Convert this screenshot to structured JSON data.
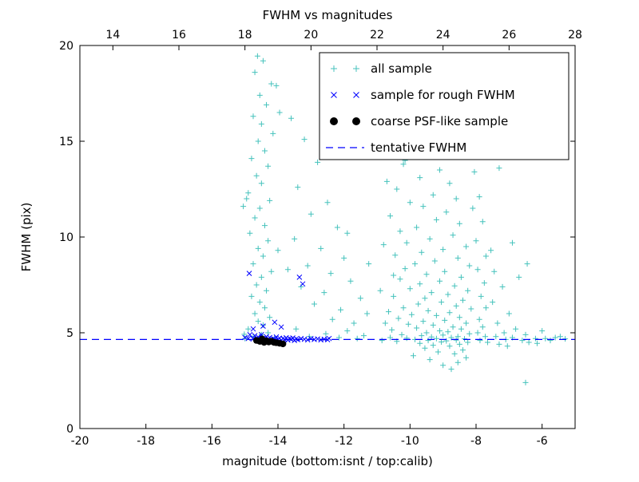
{
  "chart_data": {
    "type": "scatter",
    "title": "FWHM vs magnitudes",
    "xlabel": "magnitude (bottom:isnt / top:calib)",
    "ylabel": "FWHM (pix)",
    "xlim": [
      -20,
      -5
    ],
    "ylim": [
      0,
      20
    ],
    "x_ticks_bottom": [
      -20,
      -18,
      -16,
      -14,
      -12,
      -10,
      -8,
      -6
    ],
    "x_ticks_top": [
      14,
      16,
      18,
      20,
      22,
      24,
      26,
      28
    ],
    "top_axis_offset": 33,
    "y_ticks": [
      0,
      5,
      10,
      15,
      20
    ],
    "tentative_fwhm": 4.65,
    "grid": false,
    "legend_position": "upper right",
    "colors": {
      "all_sample": "#45c2bc",
      "rough_fwhm": "#0000ff",
      "psf_like": "#000000",
      "tentative_line": "#0000ff",
      "frame": "#000000"
    },
    "legend": [
      {
        "label": "all sample",
        "marker": "plus"
      },
      {
        "label": "sample for rough FWHM",
        "marker": "x"
      },
      {
        "label": "coarse PSF-like sample",
        "marker": "dot"
      },
      {
        "label": "tentative FWHM",
        "marker": "dashed"
      }
    ],
    "series": {
      "all_sample": [
        [
          -14.62,
          19.45
        ],
        [
          -14.45,
          19.2
        ],
        [
          -14.7,
          18.6
        ],
        [
          -14.2,
          18.0
        ],
        [
          -14.55,
          17.4
        ],
        [
          -14.35,
          16.9
        ],
        [
          -14.75,
          16.3
        ],
        [
          -14.5,
          15.9
        ],
        [
          -14.15,
          15.4
        ],
        [
          -14.6,
          15.0
        ],
        [
          -14.4,
          14.5
        ],
        [
          -14.8,
          14.1
        ],
        [
          -14.3,
          13.7
        ],
        [
          -14.65,
          13.2
        ],
        [
          -14.5,
          12.8
        ],
        [
          -14.9,
          12.3
        ],
        [
          -14.25,
          11.9
        ],
        [
          -14.55,
          11.5
        ],
        [
          -14.7,
          11.0
        ],
        [
          -14.4,
          10.6
        ],
        [
          -14.85,
          10.2
        ],
        [
          -14.3,
          9.8
        ],
        [
          -14.6,
          9.4
        ],
        [
          -14.45,
          9.0
        ],
        [
          -14.75,
          8.6
        ],
        [
          -14.2,
          8.2
        ],
        [
          -14.5,
          7.9
        ],
        [
          -14.65,
          7.5
        ],
        [
          -14.35,
          7.2
        ],
        [
          -14.8,
          6.9
        ],
        [
          -14.55,
          6.6
        ],
        [
          -14.4,
          6.3
        ],
        [
          -14.7,
          6.0
        ],
        [
          -14.25,
          5.8
        ],
        [
          -14.6,
          5.6
        ],
        [
          -14.45,
          5.4
        ],
        [
          -14.9,
          5.2
        ],
        [
          -14.3,
          5.0
        ],
        [
          -14.5,
          4.9
        ],
        [
          -14.75,
          4.8
        ],
        [
          -15.0,
          4.7
        ],
        [
          -14.1,
          4.75
        ],
        [
          -14.95,
          12.0
        ],
        [
          -15.05,
          11.6
        ],
        [
          -14.05,
          17.9
        ],
        [
          -13.95,
          16.5
        ],
        [
          -14.0,
          9.3
        ],
        [
          -15.02,
          4.92
        ],
        [
          -13.6,
          16.2
        ],
        [
          -13.2,
          15.1
        ],
        [
          -12.8,
          13.9
        ],
        [
          -13.4,
          12.6
        ],
        [
          -12.5,
          11.8
        ],
        [
          -13.0,
          11.2
        ],
        [
          -12.2,
          10.5
        ],
        [
          -13.5,
          9.9
        ],
        [
          -12.7,
          9.4
        ],
        [
          -12.0,
          8.9
        ],
        [
          -13.1,
          8.5
        ],
        [
          -12.4,
          8.1
        ],
        [
          -11.8,
          7.7
        ],
        [
          -13.3,
          7.4
        ],
        [
          -12.6,
          7.1
        ],
        [
          -11.5,
          6.8
        ],
        [
          -12.9,
          6.5
        ],
        [
          -12.1,
          6.2
        ],
        [
          -11.3,
          6.0
        ],
        [
          -12.35,
          5.7
        ],
        [
          -11.7,
          5.5
        ],
        [
          -13.45,
          5.2
        ],
        [
          -11.9,
          5.1
        ],
        [
          -12.55,
          4.95
        ],
        [
          -11.4,
          4.85
        ],
        [
          -13.05,
          4.8
        ],
        [
          -12.15,
          4.75
        ],
        [
          -11.6,
          4.7
        ],
        [
          -11.25,
          8.6
        ],
        [
          -11.9,
          10.2
        ],
        [
          -13.7,
          8.3
        ],
        [
          -12.3,
          14.2
        ],
        [
          -9.9,
          14.6
        ],
        [
          -9.5,
          14.2
        ],
        [
          -10.2,
          13.8
        ],
        [
          -9.1,
          13.5
        ],
        [
          -9.7,
          13.1
        ],
        [
          -8.8,
          12.8
        ],
        [
          -10.4,
          12.5
        ],
        [
          -9.3,
          12.2
        ],
        [
          -8.6,
          12.0
        ],
        [
          -10.0,
          11.8
        ],
        [
          -9.6,
          11.6
        ],
        [
          -8.9,
          11.3
        ],
        [
          -10.6,
          11.1
        ],
        [
          -9.2,
          10.9
        ],
        [
          -8.5,
          10.7
        ],
        [
          -9.8,
          10.5
        ],
        [
          -10.3,
          10.3
        ],
        [
          -8.7,
          10.1
        ],
        [
          -9.4,
          9.9
        ],
        [
          -10.1,
          9.7
        ],
        [
          -8.3,
          9.5
        ],
        [
          -9.0,
          9.35
        ],
        [
          -9.65,
          9.2
        ],
        [
          -10.45,
          9.05
        ],
        [
          -8.55,
          8.9
        ],
        [
          -9.25,
          8.75
        ],
        [
          -9.85,
          8.6
        ],
        [
          -8.2,
          8.5
        ],
        [
          -10.15,
          8.35
        ],
        [
          -8.95,
          8.2
        ],
        [
          -9.5,
          8.05
        ],
        [
          -8.45,
          7.9
        ],
        [
          -10.3,
          7.8
        ],
        [
          -9.1,
          7.7
        ],
        [
          -9.7,
          7.55
        ],
        [
          -8.65,
          7.45
        ],
        [
          -10.0,
          7.3
        ],
        [
          -8.25,
          7.2
        ],
        [
          -9.35,
          7.1
        ],
        [
          -8.85,
          7.0
        ],
        [
          -10.5,
          6.9
        ],
        [
          -9.55,
          6.8
        ],
        [
          -8.4,
          6.7
        ],
        [
          -9.05,
          6.6
        ],
        [
          -9.75,
          6.5
        ],
        [
          -8.6,
          6.4
        ],
        [
          -10.2,
          6.3
        ],
        [
          -8.15,
          6.25
        ],
        [
          -9.45,
          6.15
        ],
        [
          -8.8,
          6.05
        ],
        [
          -9.95,
          5.95
        ],
        [
          -9.2,
          5.9
        ],
        [
          -8.5,
          5.8
        ],
        [
          -10.35,
          5.75
        ],
        [
          -8.95,
          5.65
        ],
        [
          -9.6,
          5.6
        ],
        [
          -8.3,
          5.5
        ],
        [
          -10.05,
          5.45
        ],
        [
          -9.3,
          5.4
        ],
        [
          -8.7,
          5.3
        ],
        [
          -9.8,
          5.25
        ],
        [
          -8.45,
          5.2
        ],
        [
          -10.55,
          5.15
        ],
        [
          -9.1,
          5.1
        ],
        [
          -8.85,
          5.05
        ],
        [
          -9.5,
          5.0
        ],
        [
          -8.2,
          4.95
        ],
        [
          -10.25,
          4.9
        ],
        [
          -9.0,
          4.88
        ],
        [
          -9.65,
          4.85
        ],
        [
          -8.55,
          4.8
        ],
        [
          -9.35,
          4.78
        ],
        [
          -8.75,
          4.75
        ],
        [
          -10.1,
          4.72
        ],
        [
          -9.2,
          4.7
        ],
        [
          -8.35,
          4.68
        ],
        [
          -9.85,
          4.65
        ],
        [
          -8.6,
          4.62
        ],
        [
          -9.45,
          4.6
        ],
        [
          -8.9,
          4.58
        ],
        [
          -10.4,
          4.55
        ],
        [
          -9.05,
          4.52
        ],
        [
          -8.25,
          4.5
        ],
        [
          -9.7,
          4.45
        ],
        [
          -8.5,
          4.4
        ],
        [
          -9.3,
          4.35
        ],
        [
          -8.8,
          4.3
        ],
        [
          -9.55,
          4.2
        ],
        [
          -8.4,
          4.1
        ],
        [
          -9.15,
          4.0
        ],
        [
          -8.65,
          3.9
        ],
        [
          -9.9,
          3.8
        ],
        [
          -8.3,
          3.7
        ],
        [
          -9.4,
          3.6
        ],
        [
          -8.55,
          3.45
        ],
        [
          -9.0,
          3.3
        ],
        [
          -8.75,
          3.1
        ],
        [
          -10.7,
          12.9
        ],
        [
          -10.8,
          9.6
        ],
        [
          -10.9,
          7.2
        ],
        [
          -10.75,
          5.5
        ],
        [
          -10.6,
          4.75
        ],
        [
          -10.85,
          4.6
        ],
        [
          -7.9,
          12.1
        ],
        [
          -7.8,
          10.8
        ],
        [
          -8.0,
          9.8
        ],
        [
          -7.7,
          9.0
        ],
        [
          -7.95,
          8.3
        ],
        [
          -7.75,
          7.6
        ],
        [
          -7.85,
          6.9
        ],
        [
          -7.7,
          6.3
        ],
        [
          -7.9,
          5.7
        ],
        [
          -7.8,
          5.3
        ],
        [
          -7.95,
          5.0
        ],
        [
          -7.72,
          4.8
        ],
        [
          -7.88,
          4.6
        ],
        [
          -7.65,
          4.5
        ],
        [
          -8.05,
          13.4
        ],
        [
          -10.15,
          14.0
        ],
        [
          -9.75,
          15.3
        ],
        [
          -8.1,
          11.5
        ],
        [
          -10.5,
          8.0
        ],
        [
          -10.65,
          6.1
        ],
        [
          -7.3,
          13.6
        ],
        [
          -6.45,
          8.6
        ],
        [
          -6.9,
          9.7
        ],
        [
          -7.45,
          8.2
        ],
        [
          -7.2,
          7.4
        ],
        [
          -7.5,
          6.6
        ],
        [
          -7.0,
          6.0
        ],
        [
          -7.35,
          5.5
        ],
        [
          -6.8,
          5.2
        ],
        [
          -7.15,
          5.0
        ],
        [
          -6.5,
          4.9
        ],
        [
          -7.4,
          4.8
        ],
        [
          -6.9,
          4.75
        ],
        [
          -6.2,
          4.7
        ],
        [
          -7.1,
          4.65
        ],
        [
          -6.6,
          4.6
        ],
        [
          -5.9,
          4.7
        ],
        [
          -5.6,
          4.75
        ],
        [
          -5.3,
          4.68
        ],
        [
          -6.4,
          4.5
        ],
        [
          -7.3,
          4.4
        ],
        [
          -6.0,
          5.1
        ],
        [
          -5.75,
          4.6
        ],
        [
          -6.5,
          2.4
        ],
        [
          -7.55,
          9.3
        ],
        [
          -6.7,
          7.9
        ],
        [
          -5.45,
          4.8
        ],
        [
          -7.05,
          4.3
        ],
        [
          -6.15,
          4.45
        ]
      ],
      "rough_fwhm": [
        [
          -15.0,
          4.75
        ],
        [
          -14.9,
          4.7
        ],
        [
          -14.85,
          4.9
        ],
        [
          -14.75,
          4.68
        ],
        [
          -14.7,
          4.85
        ],
        [
          -14.65,
          4.62
        ],
        [
          -14.6,
          4.78
        ],
        [
          -14.55,
          4.66
        ],
        [
          -14.5,
          4.9
        ],
        [
          -14.45,
          4.72
        ],
        [
          -14.4,
          4.64
        ],
        [
          -14.35,
          4.8
        ],
        [
          -14.3,
          4.68
        ],
        [
          -14.25,
          4.75
        ],
        [
          -14.2,
          4.62
        ],
        [
          -14.15,
          4.7
        ],
        [
          -14.1,
          4.66
        ],
        [
          -14.05,
          4.78
        ],
        [
          -14.0,
          4.64
        ],
        [
          -13.95,
          4.72
        ],
        [
          -13.9,
          4.6
        ],
        [
          -13.85,
          4.7
        ],
        [
          -13.8,
          4.65
        ],
        [
          -13.75,
          4.74
        ],
        [
          -13.7,
          4.62
        ],
        [
          -13.65,
          4.7
        ],
        [
          -13.6,
          4.66
        ],
        [
          -13.55,
          4.73
        ],
        [
          -13.5,
          4.6
        ],
        [
          -13.45,
          4.68
        ],
        [
          -13.4,
          4.64
        ],
        [
          -13.3,
          4.7
        ],
        [
          -13.2,
          4.66
        ],
        [
          -13.1,
          4.63
        ],
        [
          -13.0,
          4.7
        ],
        [
          -12.9,
          4.65
        ],
        [
          -12.8,
          4.68
        ],
        [
          -12.7,
          4.63
        ],
        [
          -12.6,
          4.66
        ],
        [
          -12.5,
          4.64
        ],
        [
          -12.45,
          4.7
        ],
        [
          -14.87,
          8.1
        ],
        [
          -13.35,
          7.9
        ],
        [
          -13.25,
          7.55
        ],
        [
          -14.45,
          5.35
        ],
        [
          -14.1,
          5.55
        ],
        [
          -14.75,
          5.2
        ],
        [
          -13.9,
          5.3
        ]
      ],
      "psf_like": [
        [
          -14.65,
          4.6
        ],
        [
          -14.55,
          4.55
        ],
        [
          -14.5,
          4.62
        ],
        [
          -14.42,
          4.5
        ],
        [
          -14.35,
          4.58
        ],
        [
          -14.28,
          4.52
        ],
        [
          -14.2,
          4.56
        ],
        [
          -14.12,
          4.5
        ],
        [
          -14.05,
          4.48
        ],
        [
          -13.95,
          4.45
        ],
        [
          -13.85,
          4.42
        ],
        [
          -14.48,
          4.68
        ]
      ]
    }
  }
}
